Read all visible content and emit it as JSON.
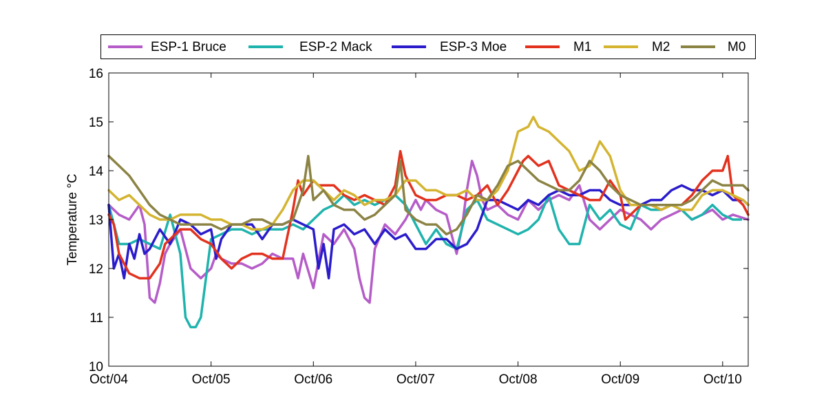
{
  "chart_data": {
    "type": "line",
    "title": "",
    "xlabel": "",
    "ylabel": "Temperature °C",
    "xlim": [
      0,
      6.25
    ],
    "ylim": [
      10,
      16
    ],
    "yticks": [
      10,
      11,
      12,
      13,
      14,
      15,
      16
    ],
    "xticks": [
      0,
      1,
      2,
      3,
      4,
      5,
      6
    ],
    "xtick_labels": [
      "Oct/04",
      "Oct/05",
      "Oct/06",
      "Oct/07",
      "Oct/08",
      "Oct/09",
      "Oct/10"
    ],
    "grid": false,
    "legend_position": "top",
    "series": [
      {
        "name": "ESP-1 Bruce",
        "color": "#b55cc8",
        "x": [
          0.0,
          0.1,
          0.2,
          0.3,
          0.35,
          0.4,
          0.45,
          0.5,
          0.55,
          0.6,
          0.7,
          0.8,
          0.9,
          1.0,
          1.05,
          1.1,
          1.2,
          1.3,
          1.4,
          1.5,
          1.6,
          1.7,
          1.8,
          1.85,
          1.9,
          2.0,
          2.1,
          2.2,
          2.3,
          2.4,
          2.45,
          2.5,
          2.55,
          2.6,
          2.7,
          2.8,
          2.9,
          3.0,
          3.05,
          3.1,
          3.2,
          3.3,
          3.35,
          3.4,
          3.45,
          3.5,
          3.55,
          3.6,
          3.65,
          3.7,
          3.8,
          3.9,
          4.0,
          4.1,
          4.2,
          4.3,
          4.4,
          4.5,
          4.6,
          4.7,
          4.8,
          4.9,
          5.0,
          5.1,
          5.2,
          5.3,
          5.4,
          5.5,
          5.6,
          5.7,
          5.8,
          5.9,
          6.0,
          6.1,
          6.25
        ],
        "y": [
          13.3,
          13.1,
          13.0,
          13.3,
          12.9,
          11.4,
          11.3,
          11.7,
          12.3,
          12.5,
          12.8,
          12.0,
          11.8,
          12.0,
          12.3,
          12.2,
          12.1,
          12.1,
          12.0,
          12.1,
          12.3,
          12.2,
          12.2,
          11.8,
          12.3,
          11.6,
          12.7,
          12.5,
          12.8,
          12.4,
          11.8,
          11.4,
          11.3,
          12.4,
          12.9,
          12.7,
          13.0,
          13.4,
          13.2,
          13.4,
          13.2,
          13.1,
          12.7,
          12.3,
          12.8,
          13.6,
          14.2,
          13.9,
          13.4,
          13.2,
          13.3,
          13.1,
          13.0,
          13.4,
          13.2,
          13.4,
          13.5,
          13.4,
          13.7,
          13.0,
          12.8,
          13.0,
          13.2,
          13.1,
          13.0,
          12.8,
          13.0,
          13.1,
          13.2,
          13.0,
          13.1,
          13.2,
          13.0,
          13.1,
          13.0
        ]
      },
      {
        "name": "ESP-2 Mack",
        "color": "#1fb3ad",
        "x": [
          0.0,
          0.1,
          0.2,
          0.3,
          0.4,
          0.5,
          0.6,
          0.7,
          0.75,
          0.8,
          0.85,
          0.9,
          1.0,
          1.1,
          1.2,
          1.3,
          1.4,
          1.5,
          1.6,
          1.7,
          1.8,
          1.9,
          2.0,
          2.1,
          2.2,
          2.3,
          2.4,
          2.5,
          2.6,
          2.7,
          2.8,
          2.9,
          3.0,
          3.1,
          3.2,
          3.3,
          3.4,
          3.5,
          3.6,
          3.7,
          3.8,
          3.9,
          4.0,
          4.1,
          4.2,
          4.3,
          4.4,
          4.5,
          4.6,
          4.7,
          4.8,
          4.9,
          5.0,
          5.1,
          5.2,
          5.3,
          5.4,
          5.5,
          5.6,
          5.7,
          5.8,
          5.9,
          6.0,
          6.1,
          6.18
        ],
        "y": [
          13.3,
          12.5,
          12.5,
          12.6,
          12.5,
          12.4,
          13.1,
          12.3,
          11.0,
          10.8,
          10.8,
          11.0,
          12.6,
          12.7,
          12.8,
          12.8,
          12.7,
          12.8,
          12.8,
          12.8,
          12.9,
          12.8,
          13.0,
          13.2,
          13.3,
          13.5,
          13.3,
          13.4,
          13.3,
          13.4,
          13.5,
          13.3,
          12.9,
          12.5,
          12.8,
          12.5,
          12.4,
          13.2,
          13.4,
          13.0,
          12.9,
          12.8,
          12.7,
          12.8,
          13.0,
          13.5,
          12.8,
          12.5,
          12.5,
          13.3,
          13.0,
          13.2,
          12.9,
          12.8,
          13.3,
          13.2,
          13.2,
          13.3,
          13.2,
          13.0,
          13.1,
          13.3,
          13.1,
          13.0,
          13.0
        ]
      },
      {
        "name": "ESP-3 Moe",
        "color": "#2a1ccb",
        "x": [
          0.0,
          0.05,
          0.1,
          0.15,
          0.2,
          0.25,
          0.3,
          0.35,
          0.4,
          0.5,
          0.6,
          0.7,
          0.8,
          0.9,
          1.0,
          1.05,
          1.1,
          1.2,
          1.3,
          1.4,
          1.5,
          1.6,
          1.7,
          1.8,
          1.9,
          2.0,
          2.05,
          2.1,
          2.15,
          2.2,
          2.3,
          2.4,
          2.5,
          2.6,
          2.7,
          2.8,
          2.9,
          3.0,
          3.1,
          3.2,
          3.3,
          3.4,
          3.5,
          3.6,
          3.7,
          3.8,
          3.9,
          4.0,
          4.1,
          4.2,
          4.3,
          4.4,
          4.5,
          4.6,
          4.7,
          4.8,
          4.9,
          5.0,
          5.1,
          5.2,
          5.3,
          5.4,
          5.5,
          5.6,
          5.7,
          5.8,
          5.9,
          6.0,
          6.1,
          6.2,
          6.25
        ],
        "y": [
          13.3,
          12.0,
          12.3,
          11.8,
          12.5,
          12.2,
          12.7,
          12.3,
          12.4,
          12.8,
          12.5,
          13.0,
          12.9,
          12.7,
          12.8,
          12.2,
          12.6,
          12.9,
          12.9,
          12.9,
          12.6,
          12.9,
          12.9,
          13.0,
          12.9,
          12.8,
          12.0,
          12.5,
          11.8,
          12.8,
          12.9,
          12.7,
          12.8,
          12.5,
          12.8,
          12.6,
          12.7,
          12.4,
          12.4,
          12.6,
          12.6,
          12.4,
          12.5,
          12.8,
          13.4,
          13.4,
          13.3,
          13.2,
          13.4,
          13.3,
          13.5,
          13.6,
          13.5,
          13.5,
          13.6,
          13.6,
          13.4,
          13.3,
          13.3,
          13.3,
          13.4,
          13.4,
          13.6,
          13.7,
          13.6,
          13.6,
          13.5,
          13.6,
          13.4,
          13.4,
          13.3
        ]
      },
      {
        "name": "M1",
        "color": "#e2321e",
        "x": [
          0.0,
          0.05,
          0.1,
          0.15,
          0.2,
          0.3,
          0.4,
          0.5,
          0.55,
          0.6,
          0.7,
          0.8,
          0.9,
          1.0,
          1.1,
          1.2,
          1.3,
          1.4,
          1.5,
          1.6,
          1.7,
          1.8,
          1.85,
          1.9,
          2.0,
          2.05,
          2.1,
          2.2,
          2.3,
          2.4,
          2.5,
          2.6,
          2.7,
          2.8,
          2.85,
          2.9,
          3.0,
          3.1,
          3.2,
          3.3,
          3.4,
          3.5,
          3.6,
          3.7,
          3.8,
          3.9,
          4.0,
          4.05,
          4.1,
          4.2,
          4.3,
          4.4,
          4.5,
          4.6,
          4.7,
          4.8,
          4.9,
          5.0,
          5.05,
          5.1,
          5.2,
          5.3,
          5.4,
          5.5,
          5.6,
          5.7,
          5.8,
          5.9,
          6.0,
          6.05,
          6.1,
          6.2,
          6.25
        ],
        "y": [
          13.1,
          12.9,
          12.3,
          12.1,
          11.9,
          11.8,
          11.8,
          12.1,
          12.5,
          12.6,
          12.8,
          12.8,
          12.6,
          12.5,
          12.2,
          12.0,
          12.2,
          12.3,
          12.3,
          12.2,
          12.2,
          13.2,
          13.8,
          13.5,
          13.8,
          13.7,
          13.7,
          13.7,
          13.5,
          13.4,
          13.5,
          13.4,
          13.3,
          13.7,
          14.4,
          13.9,
          13.5,
          13.4,
          13.4,
          13.5,
          13.5,
          13.4,
          13.5,
          13.7,
          13.3,
          13.6,
          14.0,
          14.2,
          14.3,
          14.1,
          14.2,
          13.7,
          13.6,
          13.5,
          13.4,
          13.4,
          13.8,
          13.5,
          13.0,
          13.1,
          13.3,
          13.3,
          13.2,
          13.3,
          13.3,
          13.5,
          13.8,
          14.0,
          14.0,
          14.3,
          13.5,
          13.3,
          13.1
        ]
      },
      {
        "name": "M2",
        "color": "#d4b430",
        "x": [
          0.0,
          0.1,
          0.2,
          0.3,
          0.4,
          0.5,
          0.6,
          0.7,
          0.8,
          0.9,
          1.0,
          1.1,
          1.2,
          1.3,
          1.4,
          1.5,
          1.6,
          1.7,
          1.8,
          1.9,
          2.0,
          2.1,
          2.2,
          2.3,
          2.4,
          2.5,
          2.6,
          2.7,
          2.8,
          2.9,
          3.0,
          3.1,
          3.2,
          3.3,
          3.4,
          3.5,
          3.6,
          3.7,
          3.8,
          3.9,
          4.0,
          4.1,
          4.15,
          4.2,
          4.3,
          4.4,
          4.5,
          4.6,
          4.7,
          4.8,
          4.9,
          5.0,
          5.1,
          5.2,
          5.3,
          5.4,
          5.5,
          5.6,
          5.7,
          5.8,
          5.9,
          6.0,
          6.1,
          6.2,
          6.25
        ],
        "y": [
          13.6,
          13.4,
          13.5,
          13.3,
          13.1,
          13.0,
          13.0,
          13.1,
          13.1,
          13.1,
          13.0,
          13.0,
          12.9,
          12.9,
          12.8,
          12.8,
          12.9,
          13.2,
          13.6,
          13.8,
          13.8,
          13.6,
          13.4,
          13.6,
          13.5,
          13.3,
          13.4,
          13.4,
          13.5,
          13.8,
          13.8,
          13.6,
          13.6,
          13.5,
          13.5,
          13.6,
          13.4,
          13.4,
          13.6,
          14.0,
          14.8,
          14.9,
          15.1,
          14.9,
          14.8,
          14.6,
          14.4,
          14.0,
          14.1,
          14.6,
          14.3,
          13.6,
          13.3,
          13.3,
          13.3,
          13.2,
          13.3,
          13.2,
          13.2,
          13.5,
          13.6,
          13.6,
          13.5,
          13.4,
          13.3
        ]
      },
      {
        "name": "M0",
        "color": "#8b8344",
        "x": [
          0.0,
          0.1,
          0.2,
          0.3,
          0.4,
          0.5,
          0.6,
          0.7,
          0.8,
          0.9,
          1.0,
          1.1,
          1.2,
          1.3,
          1.4,
          1.5,
          1.6,
          1.7,
          1.8,
          1.9,
          1.95,
          2.0,
          2.1,
          2.2,
          2.3,
          2.4,
          2.5,
          2.6,
          2.7,
          2.8,
          2.85,
          2.9,
          3.0,
          3.1,
          3.2,
          3.3,
          3.4,
          3.5,
          3.6,
          3.7,
          3.8,
          3.9,
          4.0,
          4.1,
          4.2,
          4.3,
          4.4,
          4.5,
          4.6,
          4.7,
          4.8,
          4.9,
          5.0,
          5.1,
          5.2,
          5.3,
          5.4,
          5.5,
          5.6,
          5.7,
          5.8,
          5.9,
          6.0,
          6.1,
          6.2,
          6.25
        ],
        "y": [
          14.3,
          14.1,
          13.9,
          13.6,
          13.3,
          13.1,
          13.0,
          12.9,
          12.9,
          12.9,
          12.9,
          12.8,
          12.9,
          12.9,
          13.0,
          13.0,
          12.9,
          12.9,
          13.0,
          13.6,
          14.3,
          13.4,
          13.6,
          13.3,
          13.2,
          13.2,
          13.0,
          13.1,
          13.3,
          13.5,
          14.2,
          13.2,
          13.0,
          12.9,
          12.9,
          12.7,
          12.8,
          13.1,
          13.5,
          13.4,
          13.7,
          14.1,
          14.2,
          14.0,
          13.8,
          13.7,
          13.6,
          13.6,
          13.8,
          14.2,
          14.0,
          13.7,
          13.5,
          13.4,
          13.3,
          13.3,
          13.3,
          13.3,
          13.3,
          13.4,
          13.6,
          13.8,
          13.7,
          13.7,
          13.7,
          13.6
        ]
      }
    ]
  }
}
